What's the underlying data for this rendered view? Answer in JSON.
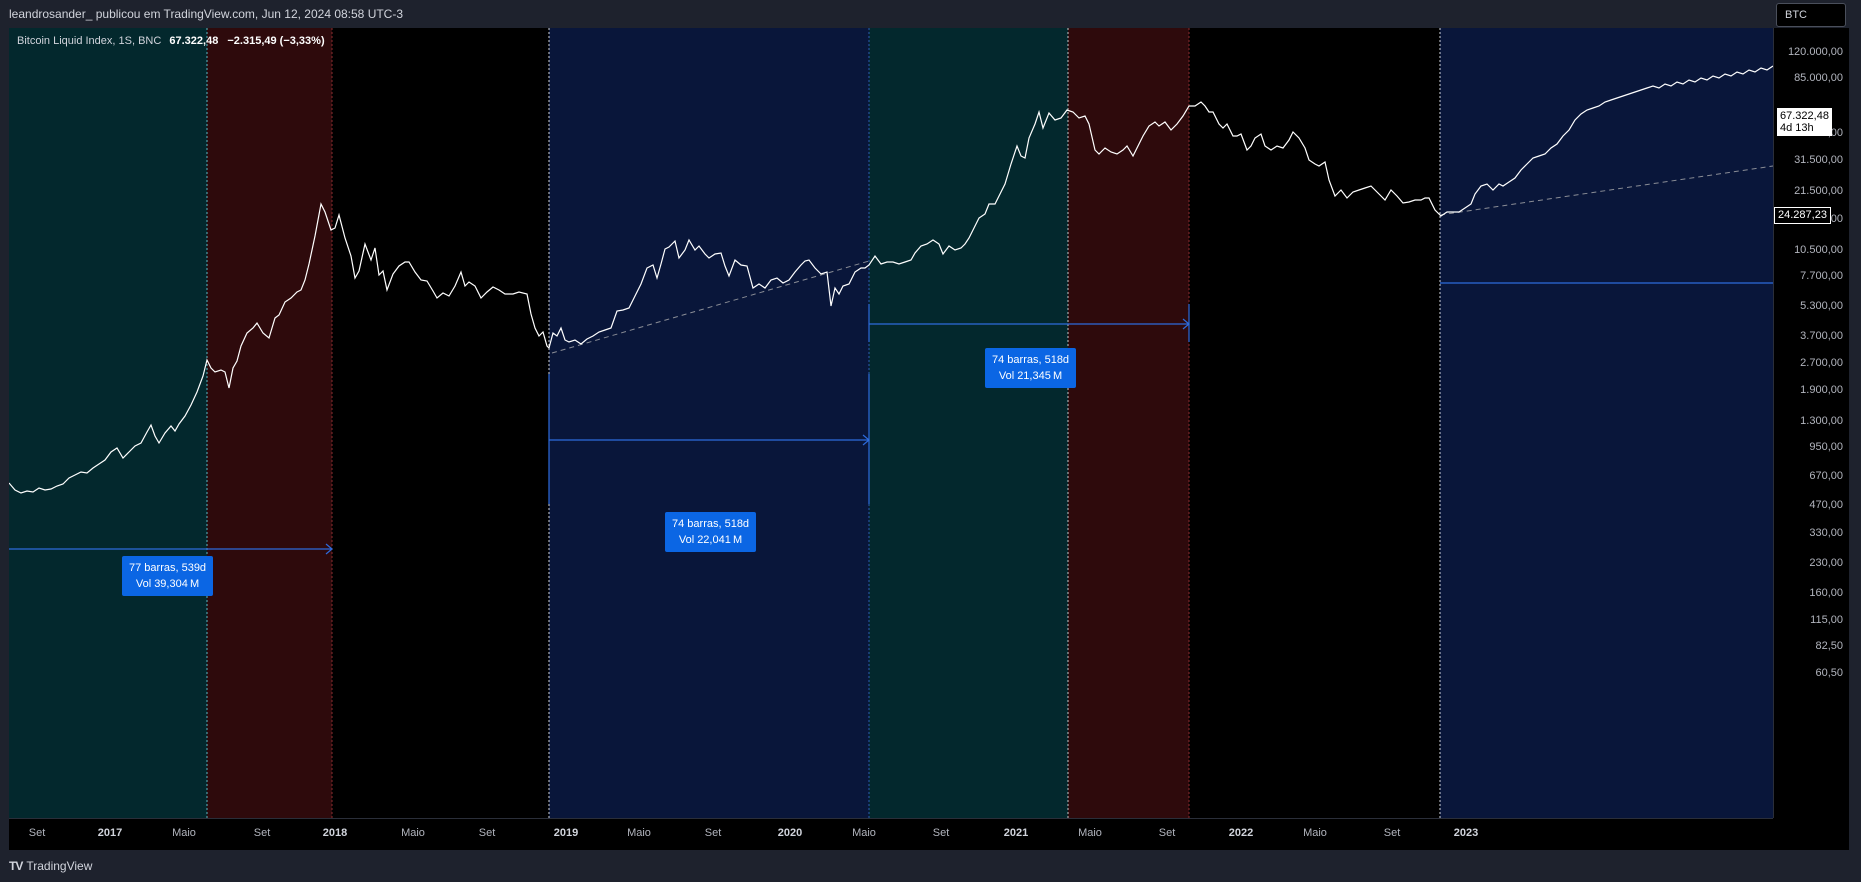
{
  "header": {
    "publisher_line": "leandrosander_ publicou em TradingView.com, Jun 12, 2024 08:58 UTC-3"
  },
  "legend": {
    "name": "Bitcoin Liquid Index, 1S, BNC",
    "last": "67.322,48",
    "change": "−2.315,49 (−3,33%)"
  },
  "symbol_button": "BTC",
  "price_tags": {
    "last_price": "67.322,48",
    "countdown": "4d 13h",
    "crosshair_price": "24.287,23"
  },
  "price_axis": [
    "120.000,00",
    "85.000,00",
    "43.500,00",
    "31.500,00",
    "21.500,00",
    "15.500,00",
    "10.500,00",
    "7.700,00",
    "5.300,00",
    "3.700,00",
    "2.700,00",
    "1.900,00",
    "1.300,00",
    "950,00",
    "670,00",
    "470,00",
    "330,00",
    "230,00",
    "160,00",
    "115,00",
    "82,50",
    "60,50"
  ],
  "time_axis": [
    {
      "label": "Set",
      "year": false
    },
    {
      "label": "2017",
      "year": true
    },
    {
      "label": "Maio",
      "year": false
    },
    {
      "label": "Set",
      "year": false
    },
    {
      "label": "2018",
      "year": true
    },
    {
      "label": "Maio",
      "year": false
    },
    {
      "label": "Set",
      "year": false
    },
    {
      "label": "2019",
      "year": true
    },
    {
      "label": "Maio",
      "year": false
    },
    {
      "label": "Set",
      "year": false
    },
    {
      "label": "2020",
      "year": true
    },
    {
      "label": "Maio",
      "year": false
    },
    {
      "label": "Set",
      "year": false
    },
    {
      "label": "2021",
      "year": true
    },
    {
      "label": "Maio",
      "year": false
    },
    {
      "label": "Set",
      "year": false
    },
    {
      "label": "2022",
      "year": true
    },
    {
      "label": "Maio",
      "year": false
    },
    {
      "label": "Set",
      "year": false
    },
    {
      "label": "2023",
      "year": true
    }
  ],
  "measurements": [
    {
      "line1": "77 barras, 539d",
      "line2": "Vol 39,304 M"
    },
    {
      "line1": "74 barras, 518d",
      "line2": "Vol 22,041 M"
    },
    {
      "line1": "74 barras, 518d",
      "line2": "Vol 21,345 M"
    }
  ],
  "colors": {
    "teal_zone": "#03282d",
    "red_zone": "#2e0a0c",
    "navy_zone": "#09163a",
    "price_line": "#ffffff",
    "measure_blue": "#0b66e4"
  },
  "footer": {
    "brand": "TradingView"
  }
}
